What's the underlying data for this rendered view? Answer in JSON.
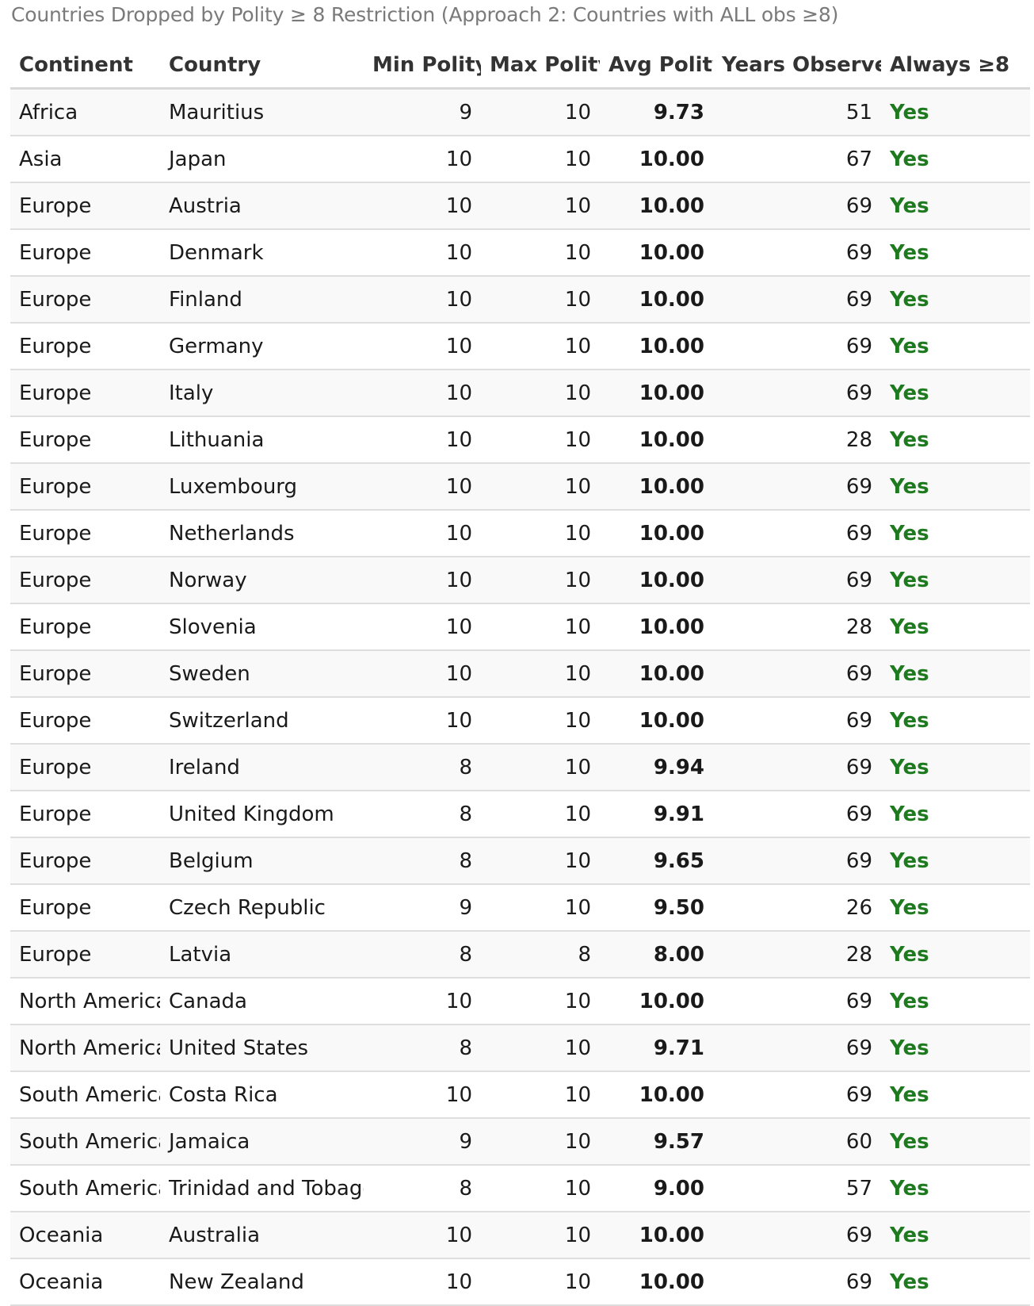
{
  "caption": "Countries Dropped by Polity ≥ 8 Restriction (Approach 2: Countries with ALL obs ≥8)",
  "columns": [
    "Continent",
    "Country",
    "Min Polity",
    "Max Polity",
    "Avg Polity",
    "Years Observed",
    "Always ≥8"
  ],
  "rows": [
    [
      "Africa",
      "Mauritius",
      "9",
      "10",
      "9.73",
      "51",
      "Yes"
    ],
    [
      "Asia",
      "Japan",
      "10",
      "10",
      "10.00",
      "67",
      "Yes"
    ],
    [
      "Europe",
      "Austria",
      "10",
      "10",
      "10.00",
      "69",
      "Yes"
    ],
    [
      "Europe",
      "Denmark",
      "10",
      "10",
      "10.00",
      "69",
      "Yes"
    ],
    [
      "Europe",
      "Finland",
      "10",
      "10",
      "10.00",
      "69",
      "Yes"
    ],
    [
      "Europe",
      "Germany",
      "10",
      "10",
      "10.00",
      "69",
      "Yes"
    ],
    [
      "Europe",
      "Italy",
      "10",
      "10",
      "10.00",
      "69",
      "Yes"
    ],
    [
      "Europe",
      "Lithuania",
      "10",
      "10",
      "10.00",
      "28",
      "Yes"
    ],
    [
      "Europe",
      "Luxembourg",
      "10",
      "10",
      "10.00",
      "69",
      "Yes"
    ],
    [
      "Europe",
      "Netherlands",
      "10",
      "10",
      "10.00",
      "69",
      "Yes"
    ],
    [
      "Europe",
      "Norway",
      "10",
      "10",
      "10.00",
      "69",
      "Yes"
    ],
    [
      "Europe",
      "Slovenia",
      "10",
      "10",
      "10.00",
      "28",
      "Yes"
    ],
    [
      "Europe",
      "Sweden",
      "10",
      "10",
      "10.00",
      "69",
      "Yes"
    ],
    [
      "Europe",
      "Switzerland",
      "10",
      "10",
      "10.00",
      "69",
      "Yes"
    ],
    [
      "Europe",
      "Ireland",
      "8",
      "10",
      "9.94",
      "69",
      "Yes"
    ],
    [
      "Europe",
      "United Kingdom",
      "8",
      "10",
      "9.91",
      "69",
      "Yes"
    ],
    [
      "Europe",
      "Belgium",
      "8",
      "10",
      "9.65",
      "69",
      "Yes"
    ],
    [
      "Europe",
      "Czech Republic",
      "9",
      "10",
      "9.50",
      "26",
      "Yes"
    ],
    [
      "Europe",
      "Latvia",
      "8",
      "8",
      "8.00",
      "28",
      "Yes"
    ],
    [
      "North America",
      "Canada",
      "10",
      "10",
      "10.00",
      "69",
      "Yes"
    ],
    [
      "North America",
      "United States",
      "8",
      "10",
      "9.71",
      "69",
      "Yes"
    ],
    [
      "South America",
      "Costa Rica",
      "10",
      "10",
      "10.00",
      "69",
      "Yes"
    ],
    [
      "South America",
      "Jamaica",
      "9",
      "10",
      "9.57",
      "60",
      "Yes"
    ],
    [
      "South America",
      "Trinidad and Tobago",
      "8",
      "10",
      "9.00",
      "57",
      "Yes"
    ],
    [
      "Oceania",
      "Australia",
      "10",
      "10",
      "10.00",
      "69",
      "Yes"
    ],
    [
      "Oceania",
      "New Zealand",
      "10",
      "10",
      "10.00",
      "69",
      "Yes"
    ]
  ],
  "colors": {
    "caption": "#7a7a7a",
    "yes": "#1e7a1e",
    "row_stripe": "#f9f9f9",
    "border": "#dedede"
  }
}
